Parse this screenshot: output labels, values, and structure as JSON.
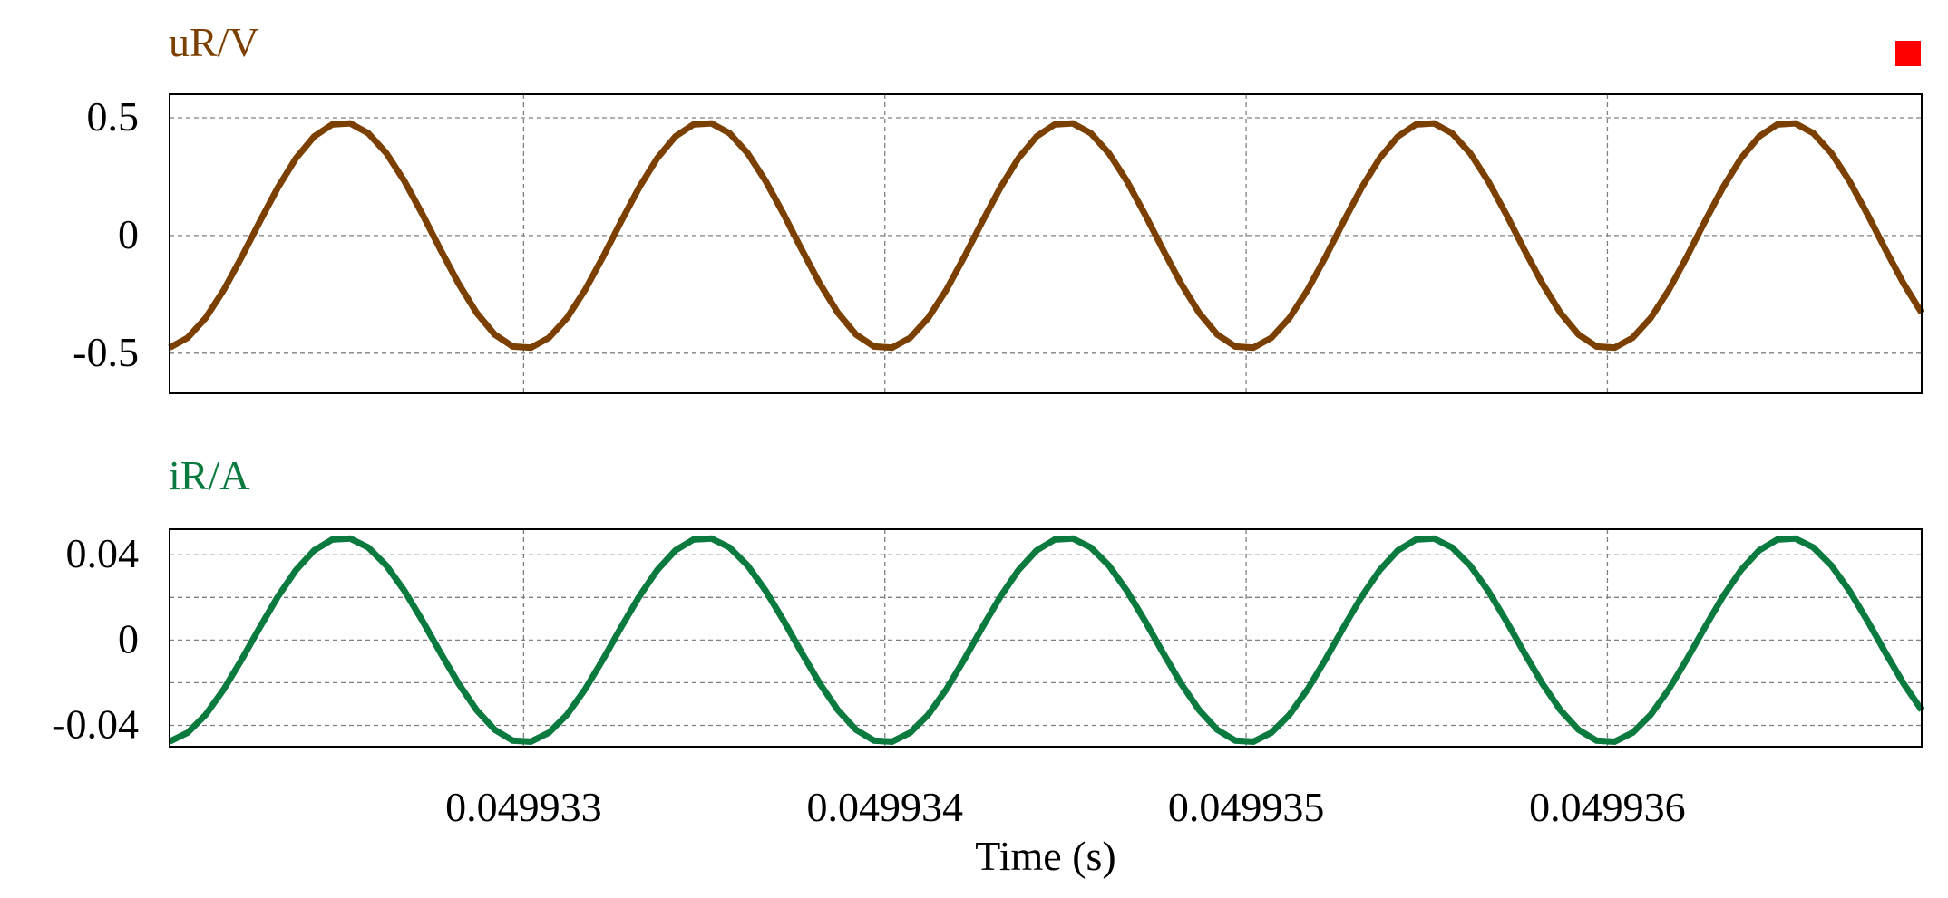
{
  "colors": {
    "background": "#ffffff",
    "grid": "#808080",
    "frame": "#000000",
    "marker": "#ff0000"
  },
  "chart_data": [
    {
      "type": "line",
      "title": "uR/V",
      "title_color": "#7b3f00",
      "xlabel": "",
      "ylabel": "",
      "xlim": [
        0.04993202,
        0.04993687
      ],
      "ylim": [
        -0.67,
        0.6
      ],
      "yticks": [
        0.5,
        0,
        -0.5
      ],
      "ytick_labels": [
        "0.5",
        "0",
        "-0.5"
      ],
      "horizontal_grid": [
        0.5,
        0,
        -0.5
      ],
      "xgrid": [
        0.049933,
        0.049934,
        0.049935,
        0.049936
      ],
      "show_xtick_labels": false,
      "legend_marker": "top-right",
      "grid": true,
      "series": [
        {
          "color": "#7b3f00",
          "amplitude": 0.48,
          "period": 1e-06,
          "peak_time": 0.0499325,
          "x_start": 0.04993202,
          "x_end": 0.04993687,
          "samples_per_period": 20
        }
      ]
    },
    {
      "type": "line",
      "title": "iR/A",
      "title_color": "#0b7a3e",
      "xlabel": "Time (s)",
      "ylabel": "",
      "xlim": [
        0.04993202,
        0.04993687
      ],
      "ylim": [
        -0.05,
        0.052
      ],
      "yticks": [
        0.04,
        0,
        -0.04
      ],
      "ytick_labels": [
        "0.04",
        "0",
        "-0.04"
      ],
      "horizontal_grid": [
        0.04,
        0.02,
        0,
        -0.02,
        -0.04
      ],
      "xgrid": [
        0.049933,
        0.049934,
        0.049935,
        0.049936
      ],
      "xticks": [
        0.049933,
        0.049934,
        0.049935,
        0.049936
      ],
      "xtick_labels": [
        "0.049933",
        "0.049934",
        "0.049935",
        "0.049936"
      ],
      "show_xtick_labels": true,
      "grid": true,
      "series": [
        {
          "color": "#0b7a3e",
          "amplitude": 0.048,
          "period": 1e-06,
          "peak_time": 0.0499325,
          "x_start": 0.04993202,
          "x_end": 0.04993687,
          "samples_per_period": 20
        }
      ]
    }
  ]
}
